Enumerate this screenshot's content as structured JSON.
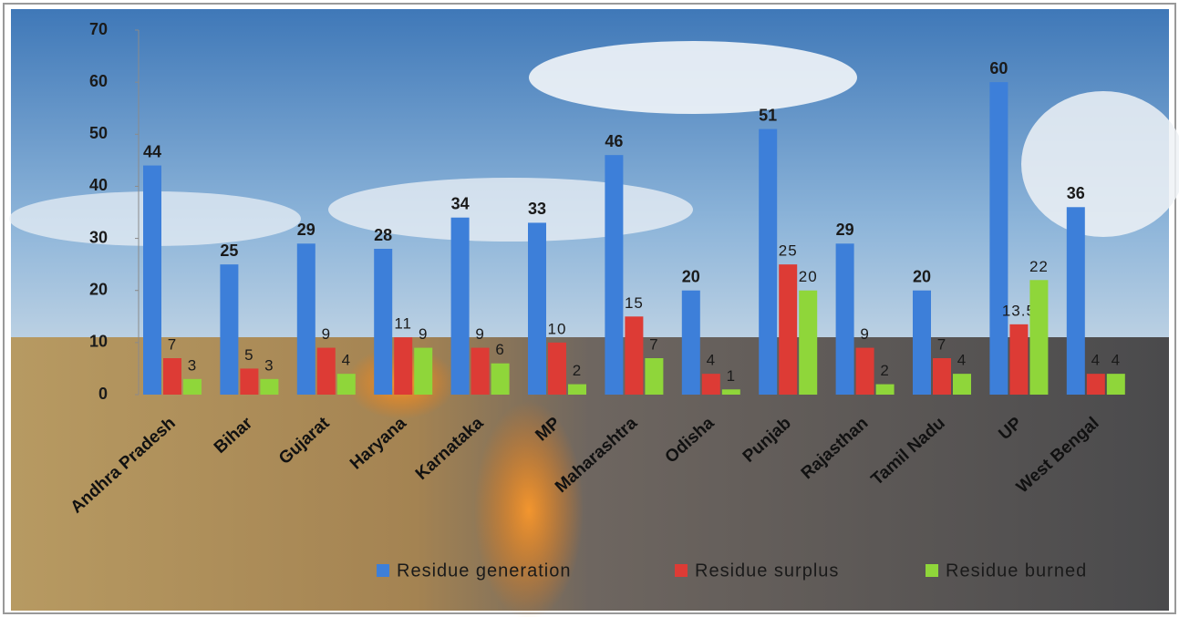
{
  "chart_data": {
    "type": "bar",
    "categories": [
      "Andhra Pradesh",
      "Bihar",
      "Gujarat",
      "Haryana",
      "Karnataka",
      "MP",
      "Maharashtra",
      "Odisha",
      "Punjab",
      "Rajasthan",
      "Tamil Nadu",
      "UP",
      "West Bengal"
    ],
    "series": [
      {
        "name": "Residue generation",
        "color": "#3d7fd9",
        "values": [
          44,
          25,
          29,
          28,
          34,
          33,
          46,
          20,
          51,
          29,
          20,
          60,
          36
        ]
      },
      {
        "name": "Residue surplus",
        "color": "#dd3b35",
        "values": [
          7,
          5,
          9,
          11,
          9,
          10,
          15,
          4,
          25,
          9,
          7,
          13.5,
          4
        ]
      },
      {
        "name": "Residue burned",
        "color": "#8fd63a",
        "values": [
          3,
          3,
          4,
          9,
          6,
          2,
          7,
          1,
          20,
          2,
          4,
          22,
          4
        ]
      }
    ],
    "ylim": [
      0,
      70
    ],
    "yticks": [
      0,
      10,
      20,
      30,
      40,
      50,
      60,
      70
    ],
    "legend": "bottom"
  }
}
